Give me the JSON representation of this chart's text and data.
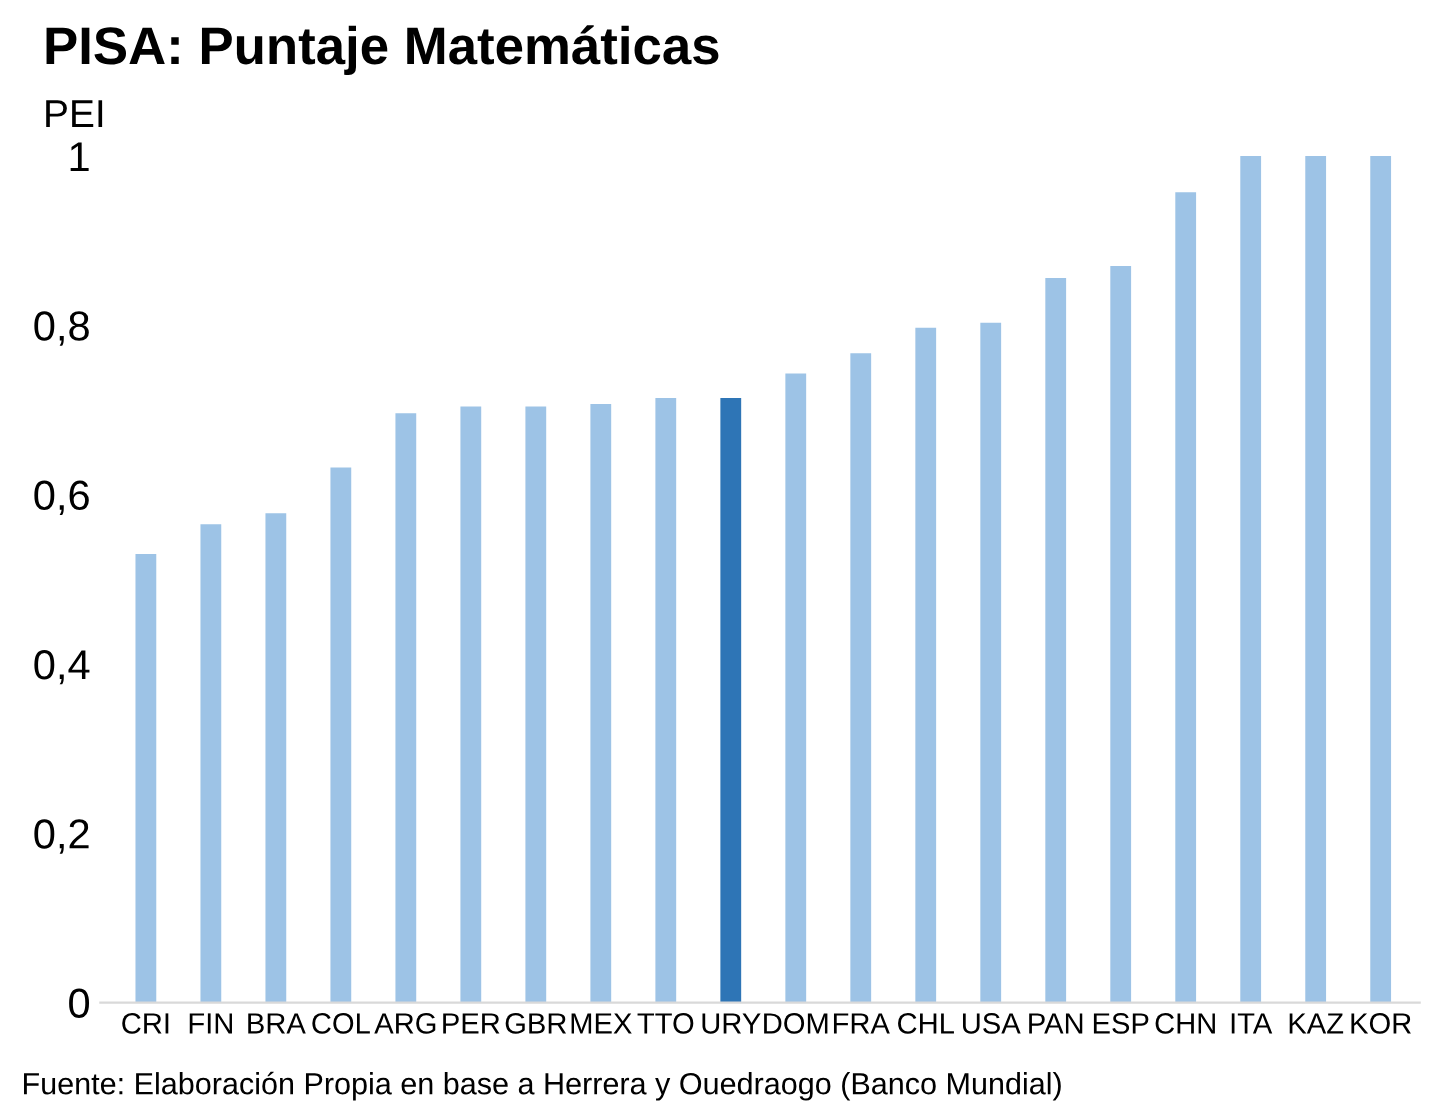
{
  "chart_data": {
    "type": "bar",
    "title": "PISA: Puntaje Matemáticas",
    "ylabel": "PEI",
    "categories": [
      "CRI",
      "FIN",
      "BRA",
      "COL",
      "ARG",
      "PER",
      "GBR",
      "MEX",
      "TTO",
      "URY",
      "DOM",
      "FRA",
      "CHL",
      "USA",
      "PAN",
      "ESP",
      "CHN",
      "ITA",
      "KAZ",
      "KOR"
    ],
    "values": [
      0.53,
      0.565,
      0.578,
      0.632,
      0.696,
      0.704,
      0.704,
      0.707,
      0.714,
      0.714,
      0.743,
      0.767,
      0.797,
      0.803,
      0.856,
      0.87,
      0.957,
      1,
      1,
      1
    ],
    "colors": [
      "#9dc3e6",
      "#9dc3e6",
      "#9dc3e6",
      "#9dc3e6",
      "#9dc3e6",
      "#9dc3e6",
      "#9dc3e6",
      "#9dc3e6",
      "#9dc3e6",
      "#2e75b6",
      "#9dc3e6",
      "#9dc3e6",
      "#9dc3e6",
      "#9dc3e6",
      "#9dc3e6",
      "#9dc3e6",
      "#9dc3e6",
      "#9dc3e6",
      "#9dc3e6",
      "#9dc3e6"
    ],
    "ylim": [
      0,
      1
    ],
    "yticks": [
      {
        "value": 0,
        "label": "0"
      },
      {
        "value": 0.2,
        "label": "0,2"
      },
      {
        "value": 0.4,
        "label": "0,4"
      },
      {
        "value": 0.6,
        "label": "0,6"
      },
      {
        "value": 0.8,
        "label": "0,8"
      },
      {
        "value": 1,
        "label": "1"
      }
    ],
    "annotations": [
      "Fuente: Elaboración Propia en base a Herrera y Ouedraogo (Banco Mundial)"
    ],
    "grid": false,
    "legend": false
  }
}
